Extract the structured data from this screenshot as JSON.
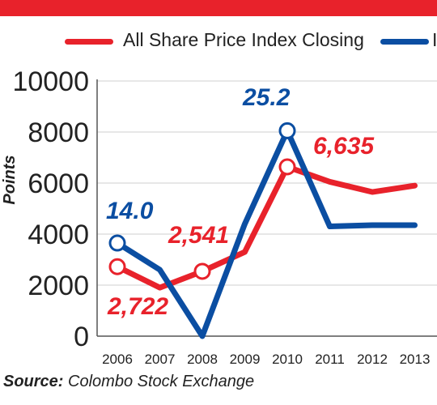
{
  "chart_data": {
    "type": "line",
    "ylabel": "Points",
    "ylim": [
      0,
      10000
    ],
    "yticks": [
      0,
      2000,
      4000,
      6000,
      8000,
      10000
    ],
    "categories": [
      "2006",
      "2007",
      "2008",
      "2009",
      "2010",
      "2011",
      "2012",
      "2013"
    ],
    "series": [
      {
        "name": "All Share Price Index Closing",
        "color": "#e8222b",
        "values": [
          2722,
          1900,
          2541,
          3300,
          6635,
          6050,
          5650,
          5900
        ],
        "label_points": [
          0,
          2,
          4
        ],
        "labels": [
          "2,722",
          "2,541",
          "6,635"
        ]
      },
      {
        "name": "",
        "color": "#0b4ea2",
        "values": [
          3650,
          2600,
          0,
          4400,
          8050,
          4300,
          4350,
          4350
        ],
        "label_points": [
          0,
          4
        ],
        "labels": [
          "14.0",
          "25.2"
        ]
      }
    ],
    "grid": true
  },
  "legend": {
    "label_1": "All Share Price Index Closing",
    "label_2_partial": "I"
  },
  "source": {
    "prefix": "Source:",
    "text": " Colombo Stock Exchange"
  }
}
